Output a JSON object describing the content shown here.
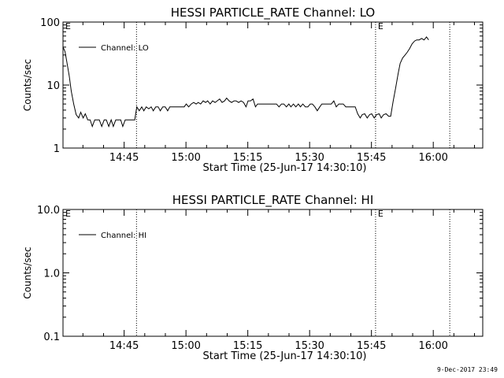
{
  "footer_timestamp": "9-Dec-2017 23:49",
  "chart_data": [
    {
      "type": "line",
      "title": "HESSI PARTICLE_RATE Channel: LO",
      "xlabel": "Start Time (25-Jun-17 14:30:10)",
      "ylabel": "Counts/sec",
      "y_scale": "log",
      "ylim": [
        1,
        100
      ],
      "y_ticks": [
        "1",
        "10",
        "100"
      ],
      "x_range_minutes": [
        "14:30:10",
        "16:12"
      ],
      "x_ticks": [
        "14:45",
        "15:00",
        "15:15",
        "15:30",
        "15:45",
        "16:00"
      ],
      "vertical_markers": [
        {
          "time": "14:48",
          "label": ""
        },
        {
          "time": "15:46",
          "label": "E"
        },
        {
          "time": "16:04",
          "label": ""
        }
      ],
      "corner_marker": "E",
      "legend": {
        "placement": "top-left",
        "entries": [
          "Channel: LO"
        ]
      },
      "series": [
        {
          "name": "Channel: LO",
          "points": [
            [
              0,
              40
            ],
            [
              0.5,
              34
            ],
            [
              1,
              22
            ],
            [
              1.5,
              14
            ],
            [
              2,
              8
            ],
            [
              2.6,
              5
            ],
            [
              3.2,
              3.4
            ],
            [
              3.8,
              3
            ],
            [
              4.3,
              3.7
            ],
            [
              4.9,
              3
            ],
            [
              5.4,
              3.5
            ],
            [
              6,
              2.8
            ],
            [
              6.6,
              2.8
            ],
            [
              7.1,
              2.2
            ],
            [
              7.7,
              2.8
            ],
            [
              8.3,
              2.8
            ],
            [
              8.8,
              2.8
            ],
            [
              9.4,
              2.2
            ],
            [
              10,
              2.8
            ],
            [
              10.5,
              2.8
            ],
            [
              11.1,
              2.2
            ],
            [
              11.7,
              2.8
            ],
            [
              12.2,
              2.2
            ],
            [
              12.8,
              2.8
            ],
            [
              13.4,
              2.8
            ],
            [
              14,
              2.8
            ],
            [
              14.5,
              2.2
            ],
            [
              15.1,
              2.8
            ],
            [
              15.7,
              2.8
            ],
            [
              16.3,
              2.8
            ],
            [
              16.9,
              2.8
            ],
            [
              17.4,
              2.8
            ],
            [
              17.9,
              4.5
            ],
            [
              18.5,
              3.9
            ],
            [
              19.1,
              4.5
            ],
            [
              19.6,
              3.9
            ],
            [
              20.2,
              4.5
            ],
            [
              20.8,
              4.2
            ],
            [
              21.4,
              4.5
            ],
            [
              21.9,
              3.9
            ],
            [
              22.5,
              4.5
            ],
            [
              23.1,
              4.5
            ],
            [
              23.6,
              3.9
            ],
            [
              24.2,
              4.5
            ],
            [
              24.8,
              4.5
            ],
            [
              25.4,
              3.9
            ],
            [
              25.9,
              4.5
            ],
            [
              26.5,
              4.5
            ],
            [
              27.1,
              4.5
            ],
            [
              27.6,
              4.5
            ],
            [
              28.2,
              4.5
            ],
            [
              28.8,
              4.5
            ],
            [
              29.4,
              4.5
            ],
            [
              29.9,
              5
            ],
            [
              30.5,
              4.5
            ],
            [
              31.1,
              5
            ],
            [
              31.7,
              5.3
            ],
            [
              32.3,
              5
            ],
            [
              32.8,
              5.3
            ],
            [
              33.4,
              5
            ],
            [
              34,
              5.6
            ],
            [
              34.6,
              5.3
            ],
            [
              35.1,
              5.6
            ],
            [
              35.7,
              5
            ],
            [
              36.3,
              5.6
            ],
            [
              36.9,
              5.3
            ],
            [
              37.4,
              5.6
            ],
            [
              38,
              6
            ],
            [
              38.6,
              5.3
            ],
            [
              39.2,
              5.6
            ],
            [
              39.7,
              6.2
            ],
            [
              40.3,
              5.6
            ],
            [
              40.9,
              5.3
            ],
            [
              41.5,
              5.6
            ],
            [
              42,
              5.6
            ],
            [
              42.6,
              5.3
            ],
            [
              43.2,
              5.6
            ],
            [
              43.8,
              5.3
            ],
            [
              44.4,
              4.5
            ],
            [
              44.9,
              5.6
            ],
            [
              45.5,
              5.6
            ],
            [
              46.1,
              6
            ],
            [
              46.7,
              4.5
            ],
            [
              47.2,
              5
            ],
            [
              47.8,
              5
            ],
            [
              48.4,
              5
            ],
            [
              49,
              5
            ],
            [
              49.5,
              5
            ],
            [
              50.1,
              5
            ],
            [
              50.7,
              5
            ],
            [
              51.3,
              5
            ],
            [
              51.8,
              5
            ],
            [
              52.4,
              4.5
            ],
            [
              53,
              5
            ],
            [
              53.6,
              5
            ],
            [
              54.2,
              4.5
            ],
            [
              54.8,
              5
            ],
            [
              55.3,
              4.5
            ],
            [
              55.9,
              5
            ],
            [
              56.5,
              4.5
            ],
            [
              57.1,
              5
            ],
            [
              57.6,
              4.5
            ],
            [
              58.2,
              5
            ],
            [
              58.8,
              4.5
            ],
            [
              59.4,
              4.5
            ],
            [
              60,
              5
            ],
            [
              60.5,
              5
            ],
            [
              61.1,
              4.5
            ],
            [
              61.7,
              3.9
            ],
            [
              62.3,
              4.5
            ],
            [
              62.8,
              5
            ],
            [
              63.4,
              5
            ],
            [
              64,
              5
            ],
            [
              64.6,
              5
            ],
            [
              65.1,
              5
            ],
            [
              65.7,
              5.6
            ],
            [
              66.3,
              4.5
            ],
            [
              66.9,
              5
            ],
            [
              67.4,
              5
            ],
            [
              68,
              5
            ],
            [
              68.6,
              4.5
            ],
            [
              69.2,
              4.5
            ],
            [
              69.8,
              4.5
            ],
            [
              70.3,
              4.5
            ],
            [
              70.9,
              4.5
            ],
            [
              71.5,
              3.5
            ],
            [
              72.1,
              3
            ],
            [
              72.6,
              3.4
            ],
            [
              73.2,
              3.5
            ],
            [
              73.8,
              3
            ],
            [
              74.4,
              3.4
            ],
            [
              74.9,
              3.5
            ],
            [
              75.5,
              3
            ],
            [
              76.1,
              3.4
            ],
            [
              76.7,
              3.5
            ],
            [
              77.2,
              3
            ],
            [
              77.8,
              3.4
            ],
            [
              78.4,
              3.5
            ],
            [
              79,
              3.2
            ],
            [
              79.5,
              3.2
            ],
            [
              80.1,
              5.5
            ],
            [
              80.7,
              9
            ],
            [
              81.3,
              15
            ],
            [
              81.8,
              22
            ],
            [
              82.4,
              27
            ],
            [
              83,
              30
            ],
            [
              83.5,
              33
            ],
            [
              84.1,
              38
            ],
            [
              84.7,
              45
            ],
            [
              85.3,
              50
            ],
            [
              85.8,
              52
            ],
            [
              86.4,
              52
            ],
            [
              87,
              55
            ],
            [
              87.6,
              52
            ],
            [
              88.2,
              58
            ],
            [
              88.7,
              52
            ]
          ]
        }
      ]
    },
    {
      "type": "line",
      "title": "HESSI PARTICLE_RATE Channel: HI",
      "xlabel": "Start Time (25-Jun-17 14:30:10)",
      "ylabel": "Counts/sec",
      "y_scale": "log",
      "ylim": [
        0.1,
        10
      ],
      "y_ticks": [
        "0.1",
        "1.0",
        "10.0"
      ],
      "x_range_minutes": [
        "14:30:10",
        "16:12"
      ],
      "x_ticks": [
        "14:45",
        "15:00",
        "15:15",
        "15:30",
        "15:45",
        "16:00"
      ],
      "vertical_markers": [
        {
          "time": "14:48",
          "label": ""
        },
        {
          "time": "15:46",
          "label": "E"
        },
        {
          "time": "16:04",
          "label": ""
        }
      ],
      "corner_marker": "E",
      "legend": {
        "placement": "top-left",
        "entries": [
          "Channel: HI"
        ]
      },
      "series": [
        {
          "name": "Channel: HI",
          "points": []
        }
      ]
    }
  ]
}
